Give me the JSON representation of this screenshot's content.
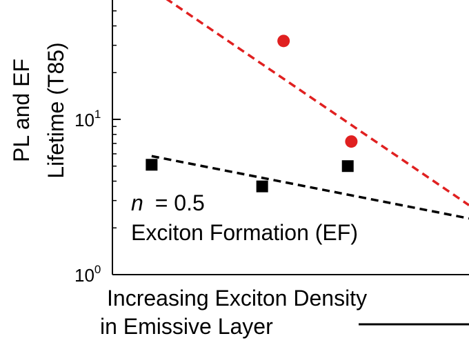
{
  "chart_data": {
    "type": "scatter",
    "ylabel_line1": "PL and EF",
    "ylabel_line2": "Lifetime (T85)",
    "xlabel_line1": "Increasing Exciton Density",
    "xlabel_line2": "in Emissive Layer",
    "y_scale": "log",
    "ylim": [
      1,
      60
    ],
    "xlim": [
      0,
      10
    ],
    "y_ticks": [
      {
        "value": 1,
        "base": "10",
        "exp": "0"
      },
      {
        "value": 10,
        "base": "10",
        "exp": "1"
      }
    ],
    "series": [
      {
        "color": "#e02020",
        "marker": "circle",
        "x": [
          4.8,
          6.7
        ],
        "y": [
          32,
          7.2
        ],
        "fit": {
          "x": [
            1.5,
            10
          ],
          "y": [
            60,
            2.8
          ]
        }
      },
      {
        "color": "#000000",
        "marker": "square",
        "x": [
          1.1,
          4.2,
          6.6
        ],
        "y": [
          5.1,
          3.7,
          5.0
        ],
        "fit": {
          "x": [
            1.1,
            10
          ],
          "y": [
            5.8,
            2.3
          ]
        }
      }
    ],
    "annotation": {
      "n_symbol": "n",
      "n_value": "= 0.5",
      "line2": "Exciton Formation (EF)"
    }
  }
}
